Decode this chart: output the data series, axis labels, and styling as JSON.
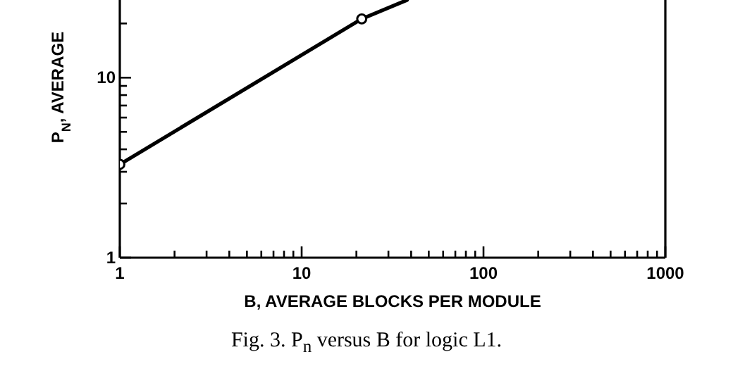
{
  "chart_data": {
    "type": "line",
    "xlabel": "B, AVERAGE BLOCKS PER MODULE",
    "ylabel": "P$_{N}$, AVERAGE",
    "annotations": [
      "Fig. 3.  P$_{n}$ versus B for logic L1."
    ],
    "log": "xy",
    "xlim": [
      1,
      1000
    ],
    "xticks": [
      1,
      {
        "value": 2,
        "label": null
      },
      {
        "value": 3,
        "label": null
      },
      {
        "value": 4,
        "label": null
      },
      {
        "value": 5,
        "label": null
      },
      {
        "value": 6,
        "label": null
      },
      {
        "value": 7,
        "label": null
      },
      {
        "value": 8,
        "label": null
      },
      {
        "value": 9,
        "label": null
      },
      10,
      {
        "value": 20,
        "label": null
      },
      {
        "value": 30,
        "label": null
      },
      {
        "value": 40,
        "label": null
      },
      {
        "value": 50,
        "label": null
      },
      {
        "value": 60,
        "label": null
      },
      {
        "value": 70,
        "label": null
      },
      {
        "value": 80,
        "label": null
      },
      {
        "value": 90,
        "label": null
      },
      100,
      {
        "value": 200,
        "label": null
      },
      {
        "value": 300,
        "label": null
      },
      {
        "value": 400,
        "label": null
      },
      {
        "value": 500,
        "label": null
      },
      {
        "value": 600,
        "label": null
      },
      {
        "value": 700,
        "label": null
      },
      {
        "value": 800,
        "label": null
      },
      {
        "value": 900,
        "label": null
      },
      1000
    ],
    "ylim": [
      1,
      27
    ],
    "yticks": [
      1,
      {
        "value": 2,
        "label": null
      },
      {
        "value": 3,
        "label": null
      },
      {
        "value": 4,
        "label": null
      },
      {
        "value": 5,
        "label": null
      },
      {
        "value": 6,
        "label": null
      },
      {
        "value": 7,
        "label": null
      },
      {
        "value": 8,
        "label": null
      },
      {
        "value": 9,
        "label": null
      },
      10,
      {
        "value": 20,
        "label": null
      }
    ],
    "series": [
      {
        "color": "#000000",
        "marker": "none",
        "line_style": "solid",
        "x": [
          1,
          21.4,
          38
        ],
        "values": [
          3.3,
          21.2,
          27
        ]
      },
      {
        "type": "scatter",
        "color": "#000000",
        "marker": "circle",
        "x": [
          1,
          21.4
        ],
        "values": [
          3.3,
          21.2
        ]
      }
    ]
  }
}
